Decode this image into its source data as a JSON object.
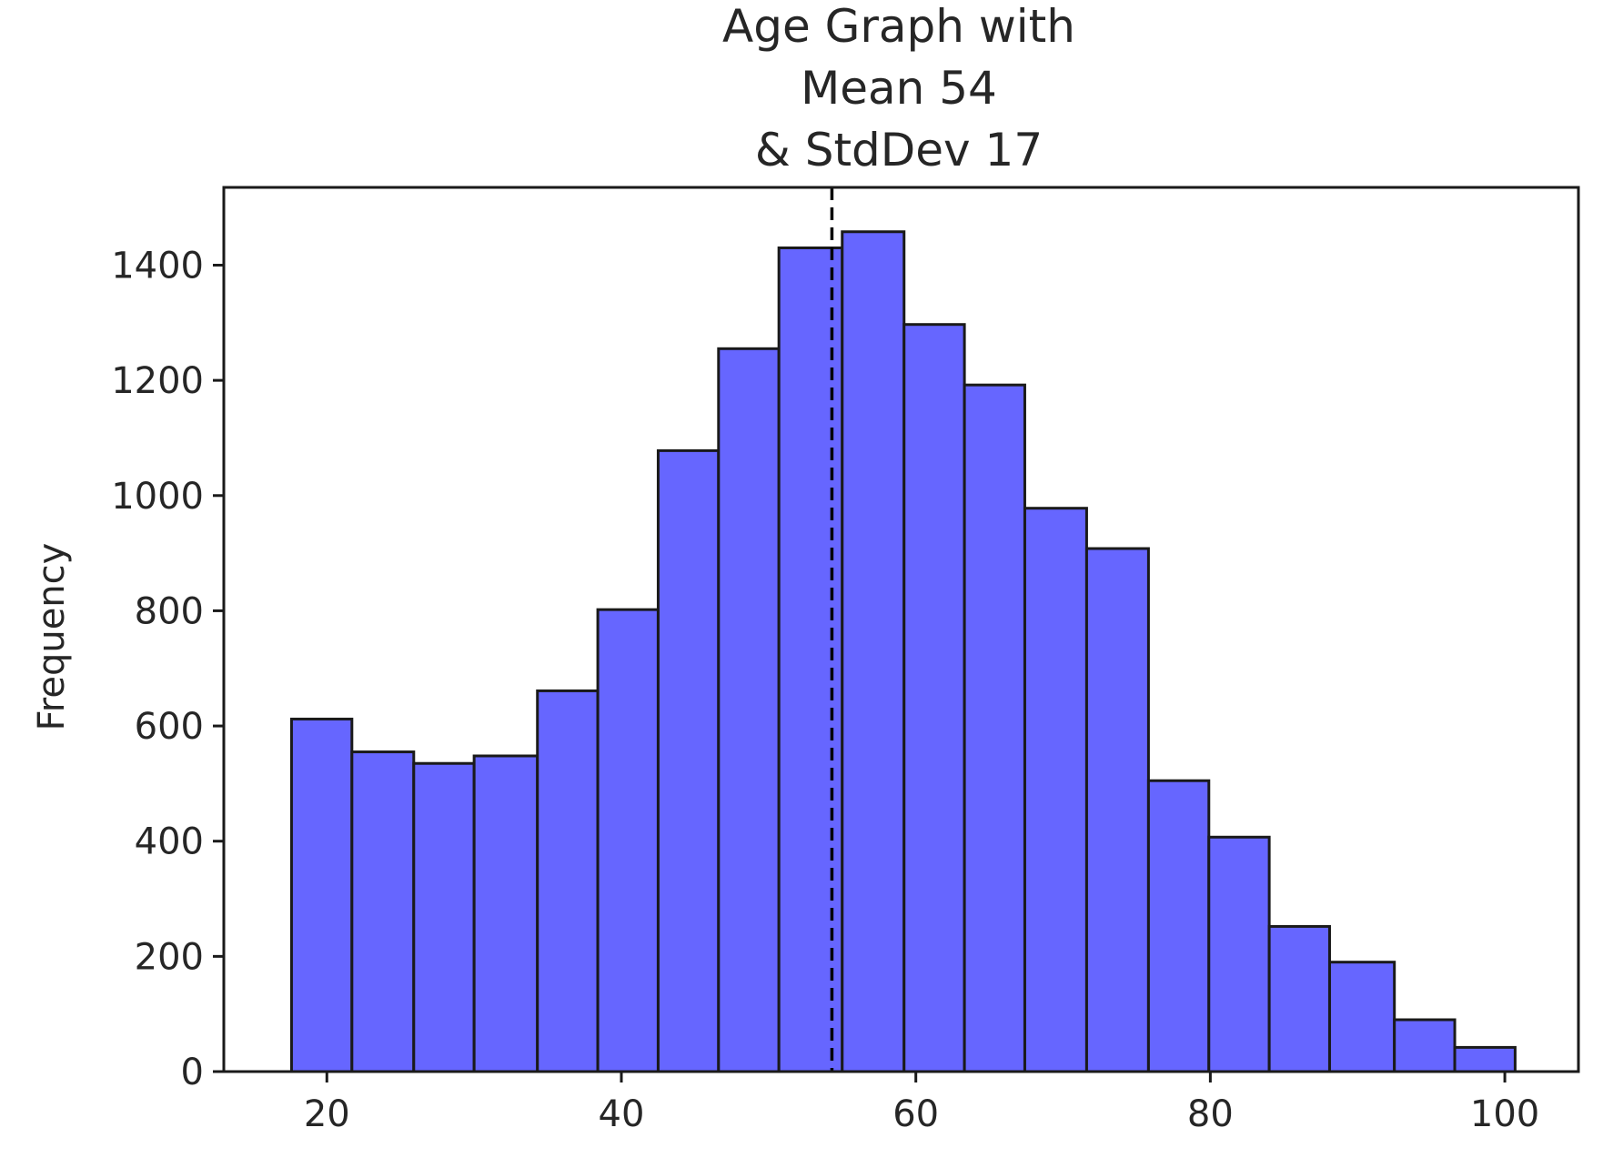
{
  "chart_data": {
    "type": "bar",
    "title_lines": [
      "Age Graph with",
      "Mean 54",
      "& StdDev 17"
    ],
    "xlabel": "",
    "ylabel": "Frequency",
    "xlim": [
      13,
      105
    ],
    "ylim": [
      0,
      1535
    ],
    "x_ticks": [
      20,
      40,
      60,
      80,
      100
    ],
    "x_tick_labels": [
      "20",
      "40",
      "60",
      "80",
      "100"
    ],
    "y_ticks": [
      0,
      200,
      400,
      600,
      800,
      1000,
      1200,
      1400
    ],
    "y_tick_labels": [
      "0",
      "200",
      "400",
      "600",
      "800",
      "1000",
      "1200",
      "1400"
    ],
    "mean_line_x": 54.3,
    "bins": [
      {
        "x0": 17.6,
        "x1": 21.7,
        "value": 612
      },
      {
        "x0": 21.7,
        "x1": 25.9,
        "value": 555
      },
      {
        "x0": 25.9,
        "x1": 30.0,
        "value": 535
      },
      {
        "x0": 30.0,
        "x1": 34.3,
        "value": 548
      },
      {
        "x0": 34.3,
        "x1": 38.4,
        "value": 661
      },
      {
        "x0": 38.4,
        "x1": 42.5,
        "value": 802
      },
      {
        "x0": 42.5,
        "x1": 46.6,
        "value": 1078
      },
      {
        "x0": 46.6,
        "x1": 50.7,
        "value": 1255
      },
      {
        "x0": 50.7,
        "x1": 55.0,
        "value": 1430
      },
      {
        "x0": 55.0,
        "x1": 59.2,
        "value": 1458
      },
      {
        "x0": 59.2,
        "x1": 63.3,
        "value": 1297
      },
      {
        "x0": 63.3,
        "x1": 67.4,
        "value": 1192
      },
      {
        "x0": 67.4,
        "x1": 71.6,
        "value": 978
      },
      {
        "x0": 71.6,
        "x1": 75.8,
        "value": 908
      },
      {
        "x0": 75.8,
        "x1": 79.9,
        "value": 505
      },
      {
        "x0": 79.9,
        "x1": 84.0,
        "value": 407
      },
      {
        "x0": 84.0,
        "x1": 88.1,
        "value": 252
      },
      {
        "x0": 88.1,
        "x1": 92.5,
        "value": 190
      },
      {
        "x0": 92.5,
        "x1": 96.6,
        "value": 90
      },
      {
        "x0": 96.6,
        "x1": 100.7,
        "value": 42
      }
    ],
    "bar_color": "#6666ff",
    "edge_color": "#1a1a1a",
    "grid": false,
    "legend": "none"
  }
}
